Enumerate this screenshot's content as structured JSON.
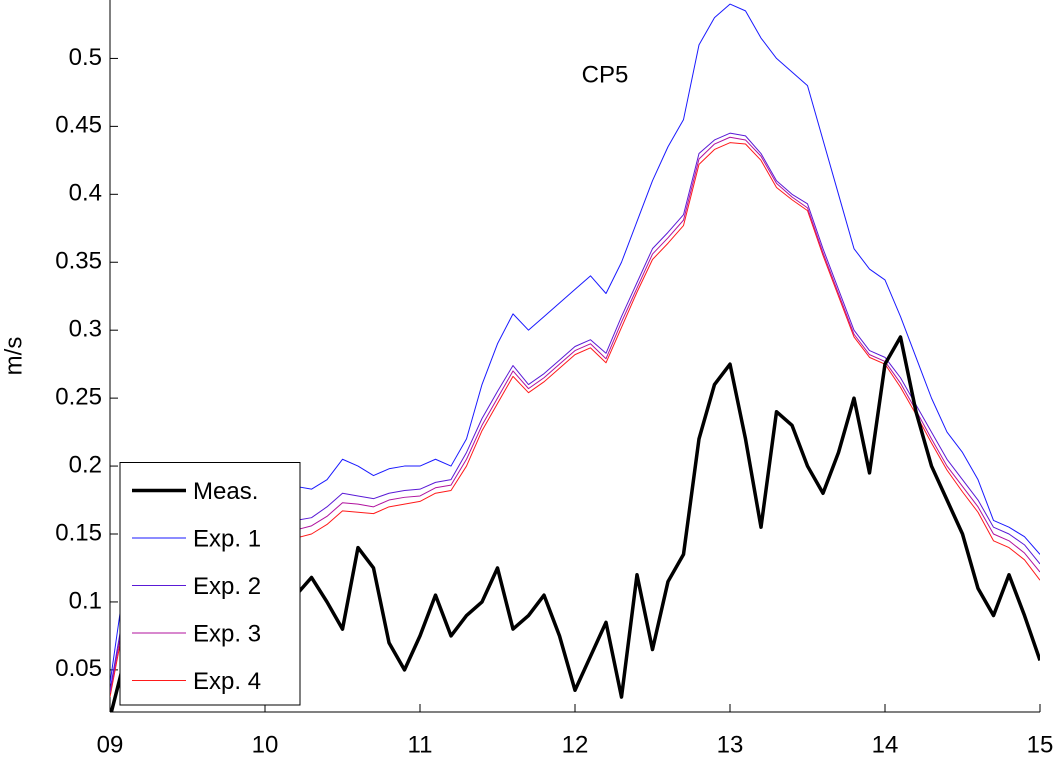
{
  "chart_data": {
    "type": "line",
    "title": "CP5",
    "y_label": "m/s",
    "x": [
      9.0,
      9.1,
      9.2,
      9.3,
      9.4,
      9.5,
      9.6,
      9.7,
      9.8,
      9.9,
      10.0,
      10.1,
      10.2,
      10.3,
      10.4,
      10.5,
      10.6,
      10.7,
      10.8,
      10.9,
      11.0,
      11.1,
      11.2,
      11.3,
      11.4,
      11.5,
      11.6,
      11.7,
      11.8,
      11.9,
      12.0,
      12.1,
      12.2,
      12.3,
      12.4,
      12.5,
      12.6,
      12.7,
      12.8,
      12.9,
      13.0,
      13.1,
      13.2,
      13.3,
      13.4,
      13.5,
      13.6,
      13.7,
      13.8,
      13.9,
      14.0,
      14.1,
      14.2,
      14.3,
      14.4,
      14.5,
      14.6,
      14.7,
      14.8,
      14.9,
      15.0
    ],
    "series": [
      {
        "name": "Meas.",
        "color": "#000000",
        "values": [
          0.015,
          0.06,
          0.09,
          0.1,
          0.085,
          0.095,
          0.11,
          0.09,
          0.08,
          0.1,
          0.095,
          0.09,
          0.105,
          0.118,
          0.1,
          0.08,
          0.14,
          0.125,
          0.07,
          0.05,
          0.075,
          0.105,
          0.075,
          0.09,
          0.1,
          0.125,
          0.08,
          0.09,
          0.105,
          0.075,
          0.035,
          0.06,
          0.085,
          0.03,
          0.12,
          0.065,
          0.115,
          0.135,
          0.22,
          0.26,
          0.275,
          0.22,
          0.155,
          0.24,
          0.23,
          0.2,
          0.18,
          0.21,
          0.25,
          0.195,
          0.275,
          0.295,
          0.24,
          0.2,
          0.175,
          0.15,
          0.11,
          0.09,
          0.12,
          0.09,
          0.057
        ]
      },
      {
        "name": "Exp. 1",
        "color": "#1a1aff",
        "values": [
          0.04,
          0.12,
          0.15,
          0.16,
          0.165,
          0.17,
          0.172,
          0.175,
          0.177,
          0.179,
          0.18,
          0.182,
          0.185,
          0.183,
          0.19,
          0.205,
          0.2,
          0.193,
          0.198,
          0.2,
          0.2,
          0.205,
          0.2,
          0.22,
          0.26,
          0.29,
          0.312,
          0.3,
          0.31,
          0.32,
          0.33,
          0.34,
          0.327,
          0.35,
          0.38,
          0.41,
          0.435,
          0.455,
          0.51,
          0.53,
          0.54,
          0.535,
          0.515,
          0.5,
          0.49,
          0.48,
          0.44,
          0.4,
          0.36,
          0.345,
          0.337,
          0.31,
          0.28,
          0.25,
          0.225,
          0.21,
          0.19,
          0.16,
          0.155,
          0.148,
          0.135
        ]
      },
      {
        "name": "Exp. 2",
        "color": "#5a1ad6",
        "values": [
          0.035,
          0.1,
          0.13,
          0.14,
          0.145,
          0.15,
          0.15,
          0.155,
          0.155,
          0.158,
          0.16,
          0.16,
          0.16,
          0.162,
          0.17,
          0.18,
          0.178,
          0.176,
          0.18,
          0.182,
          0.183,
          0.188,
          0.19,
          0.21,
          0.235,
          0.255,
          0.274,
          0.26,
          0.268,
          0.278,
          0.288,
          0.293,
          0.283,
          0.31,
          0.335,
          0.36,
          0.372,
          0.385,
          0.43,
          0.44,
          0.445,
          0.443,
          0.43,
          0.41,
          0.4,
          0.393,
          0.36,
          0.33,
          0.3,
          0.285,
          0.28,
          0.265,
          0.245,
          0.225,
          0.205,
          0.19,
          0.175,
          0.155,
          0.15,
          0.142,
          0.128
        ]
      },
      {
        "name": "Exp. 3",
        "color": "#b0129e",
        "values": [
          0.033,
          0.095,
          0.125,
          0.135,
          0.14,
          0.144,
          0.145,
          0.149,
          0.15,
          0.152,
          0.153,
          0.153,
          0.153,
          0.156,
          0.163,
          0.173,
          0.172,
          0.17,
          0.175,
          0.177,
          0.178,
          0.184,
          0.186,
          0.205,
          0.23,
          0.25,
          0.27,
          0.257,
          0.265,
          0.275,
          0.285,
          0.29,
          0.279,
          0.306,
          0.331,
          0.356,
          0.368,
          0.381,
          0.426,
          0.437,
          0.442,
          0.44,
          0.428,
          0.408,
          0.398,
          0.39,
          0.357,
          0.327,
          0.297,
          0.282,
          0.277,
          0.261,
          0.241,
          0.22,
          0.2,
          0.185,
          0.17,
          0.15,
          0.145,
          0.136,
          0.122
        ]
      },
      {
        "name": "Exp. 4",
        "color": "#ff1a1a",
        "values": [
          0.03,
          0.09,
          0.12,
          0.13,
          0.135,
          0.138,
          0.14,
          0.143,
          0.145,
          0.146,
          0.147,
          0.147,
          0.147,
          0.15,
          0.157,
          0.167,
          0.166,
          0.165,
          0.17,
          0.172,
          0.174,
          0.18,
          0.182,
          0.2,
          0.226,
          0.246,
          0.266,
          0.254,
          0.262,
          0.272,
          0.282,
          0.287,
          0.276,
          0.302,
          0.328,
          0.352,
          0.364,
          0.377,
          0.422,
          0.433,
          0.438,
          0.437,
          0.425,
          0.405,
          0.396,
          0.388,
          0.355,
          0.325,
          0.295,
          0.28,
          0.275,
          0.258,
          0.238,
          0.217,
          0.197,
          0.181,
          0.166,
          0.145,
          0.14,
          0.131,
          0.116
        ]
      }
    ],
    "xlim": [
      9,
      15
    ],
    "xticks": [
      {
        "value": 9,
        "label": "09"
      },
      10,
      11,
      12,
      13,
      14,
      15
    ],
    "ylim": [
      0.019,
      0.543
    ],
    "yticks": [
      0.05,
      0.1,
      0.15,
      0.2,
      0.25,
      0.3,
      0.35,
      0.4,
      0.45,
      0.5
    ],
    "grid": false,
    "legend": "lower left"
  }
}
